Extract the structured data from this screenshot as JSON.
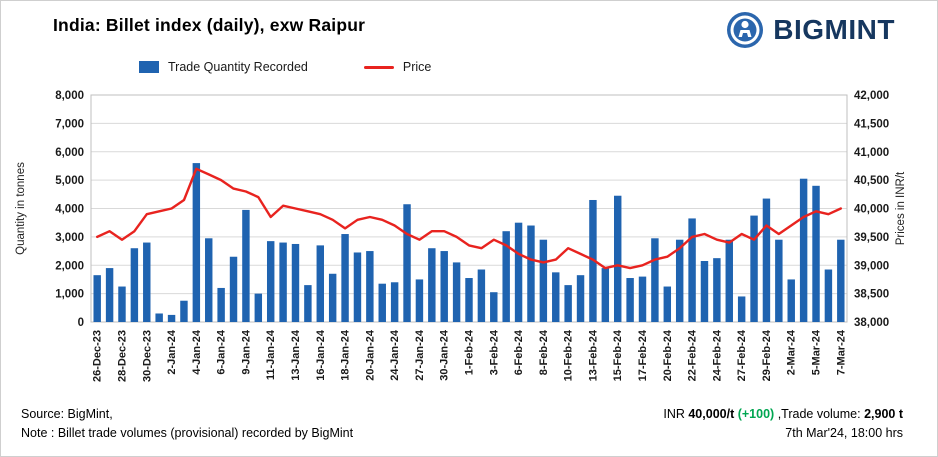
{
  "header": {
    "title": "India: Billet index (daily), exw Raipur",
    "brand": "BIGMINT",
    "brand_icon_color": "#2b66ad",
    "brand_text_color": "#16375f"
  },
  "legend": [
    {
      "label": "Trade Quantity Recorded",
      "type": "bar",
      "color": "#1F63B0"
    },
    {
      "label": "Price",
      "type": "line",
      "color": "#E8231F"
    }
  ],
  "chart_data": {
    "type": "combo",
    "title": "India: Billet index (daily), exw Raipur",
    "grid": true,
    "x_tick_interval": 2,
    "categories": [
      "26-Dec-23",
      "27-Dec-23",
      "28-Dec-23",
      "29-Dec-23",
      "30-Dec-23",
      "1-Jan-24",
      "2-Jan-24",
      "3-Jan-24",
      "4-Jan-24",
      "5-Jan-24",
      "6-Jan-24",
      "8-Jan-24",
      "9-Jan-24",
      "10-Jan-24",
      "11-Jan-24",
      "12-Jan-24",
      "13-Jan-24",
      "15-Jan-24",
      "16-Jan-24",
      "17-Jan-24",
      "18-Jan-24",
      "19-Jan-24",
      "20-Jan-24",
      "23-Jan-24",
      "24-Jan-24",
      "25-Jan-24",
      "27-Jan-24",
      "29-Jan-24",
      "30-Jan-24",
      "31-Jan-24",
      "1-Feb-24",
      "2-Feb-24",
      "3-Feb-24",
      "5-Feb-24",
      "6-Feb-24",
      "7-Feb-24",
      "8-Feb-24",
      "9-Feb-24",
      "10-Feb-24",
      "12-Feb-24",
      "13-Feb-24",
      "14-Feb-24",
      "15-Feb-24",
      "16-Feb-24",
      "17-Feb-24",
      "19-Feb-24",
      "20-Feb-24",
      "21-Feb-24",
      "22-Feb-24",
      "23-Feb-24",
      "24-Feb-24",
      "26-Feb-24",
      "27-Feb-24",
      "28-Feb-24",
      "29-Feb-24",
      "1-Mar-24",
      "2-Mar-24",
      "4-Mar-24",
      "5-Mar-24",
      "6-Mar-24",
      "7-Mar-24"
    ],
    "series": [
      {
        "name": "Trade Quantity Recorded",
        "type": "bar",
        "axis": "left",
        "color": "#1F63B0",
        "values": [
          1650,
          1900,
          1250,
          2600,
          2800,
          300,
          250,
          750,
          5600,
          2950,
          1200,
          2300,
          3950,
          1000,
          2850,
          2800,
          2750,
          1300,
          2700,
          1700,
          3100,
          2450,
          2500,
          1350,
          1400,
          4150,
          1500,
          2600,
          2500,
          2100,
          1550,
          1850,
          1050,
          3200,
          3500,
          3400,
          2900,
          1750,
          1300,
          1650,
          4300,
          1900,
          4450,
          1550,
          1600,
          2950,
          1250,
          2900,
          3650,
          2150,
          2250,
          2900,
          900,
          3750,
          4350,
          2900,
          1500,
          5050,
          4800,
          1850,
          2900
        ]
      },
      {
        "name": "Price",
        "type": "line",
        "axis": "right",
        "color": "#E8231F",
        "values": [
          39500,
          39600,
          39450,
          39600,
          39900,
          39950,
          40000,
          40150,
          40700,
          40600,
          40500,
          40350,
          40300,
          40200,
          39850,
          40050,
          40000,
          39950,
          39900,
          39800,
          39650,
          39800,
          39850,
          39800,
          39700,
          39550,
          39450,
          39600,
          39600,
          39500,
          39350,
          39300,
          39450,
          39350,
          39200,
          39100,
          39050,
          39100,
          39300,
          39200,
          39100,
          38950,
          39000,
          38950,
          39000,
          39100,
          39150,
          39300,
          39500,
          39550,
          39450,
          39400,
          39550,
          39450,
          39700,
          39550,
          39700,
          39850,
          39950,
          39900,
          40000
        ]
      }
    ],
    "left_axis": {
      "label": "Quantity in tonnes",
      "min": 0,
      "max": 8000,
      "step": 1000
    },
    "right_axis": {
      "label": "Prices in INR/t",
      "min": 38000,
      "max": 42000,
      "step": 500
    },
    "legend_position": "top"
  },
  "footer": {
    "source_line": "Source: BigMint,",
    "note_line": "Note : Billet trade volumes (provisional) recorded by BigMint",
    "price_prefix": "INR",
    "price_value": "40,000/t",
    "price_change": "(+100)",
    "change_color": "#00A651",
    "volume_label": ",Trade volume:",
    "volume_value": "2,900 t",
    "timestamp": "7th Mar'24, 18:00 hrs"
  }
}
